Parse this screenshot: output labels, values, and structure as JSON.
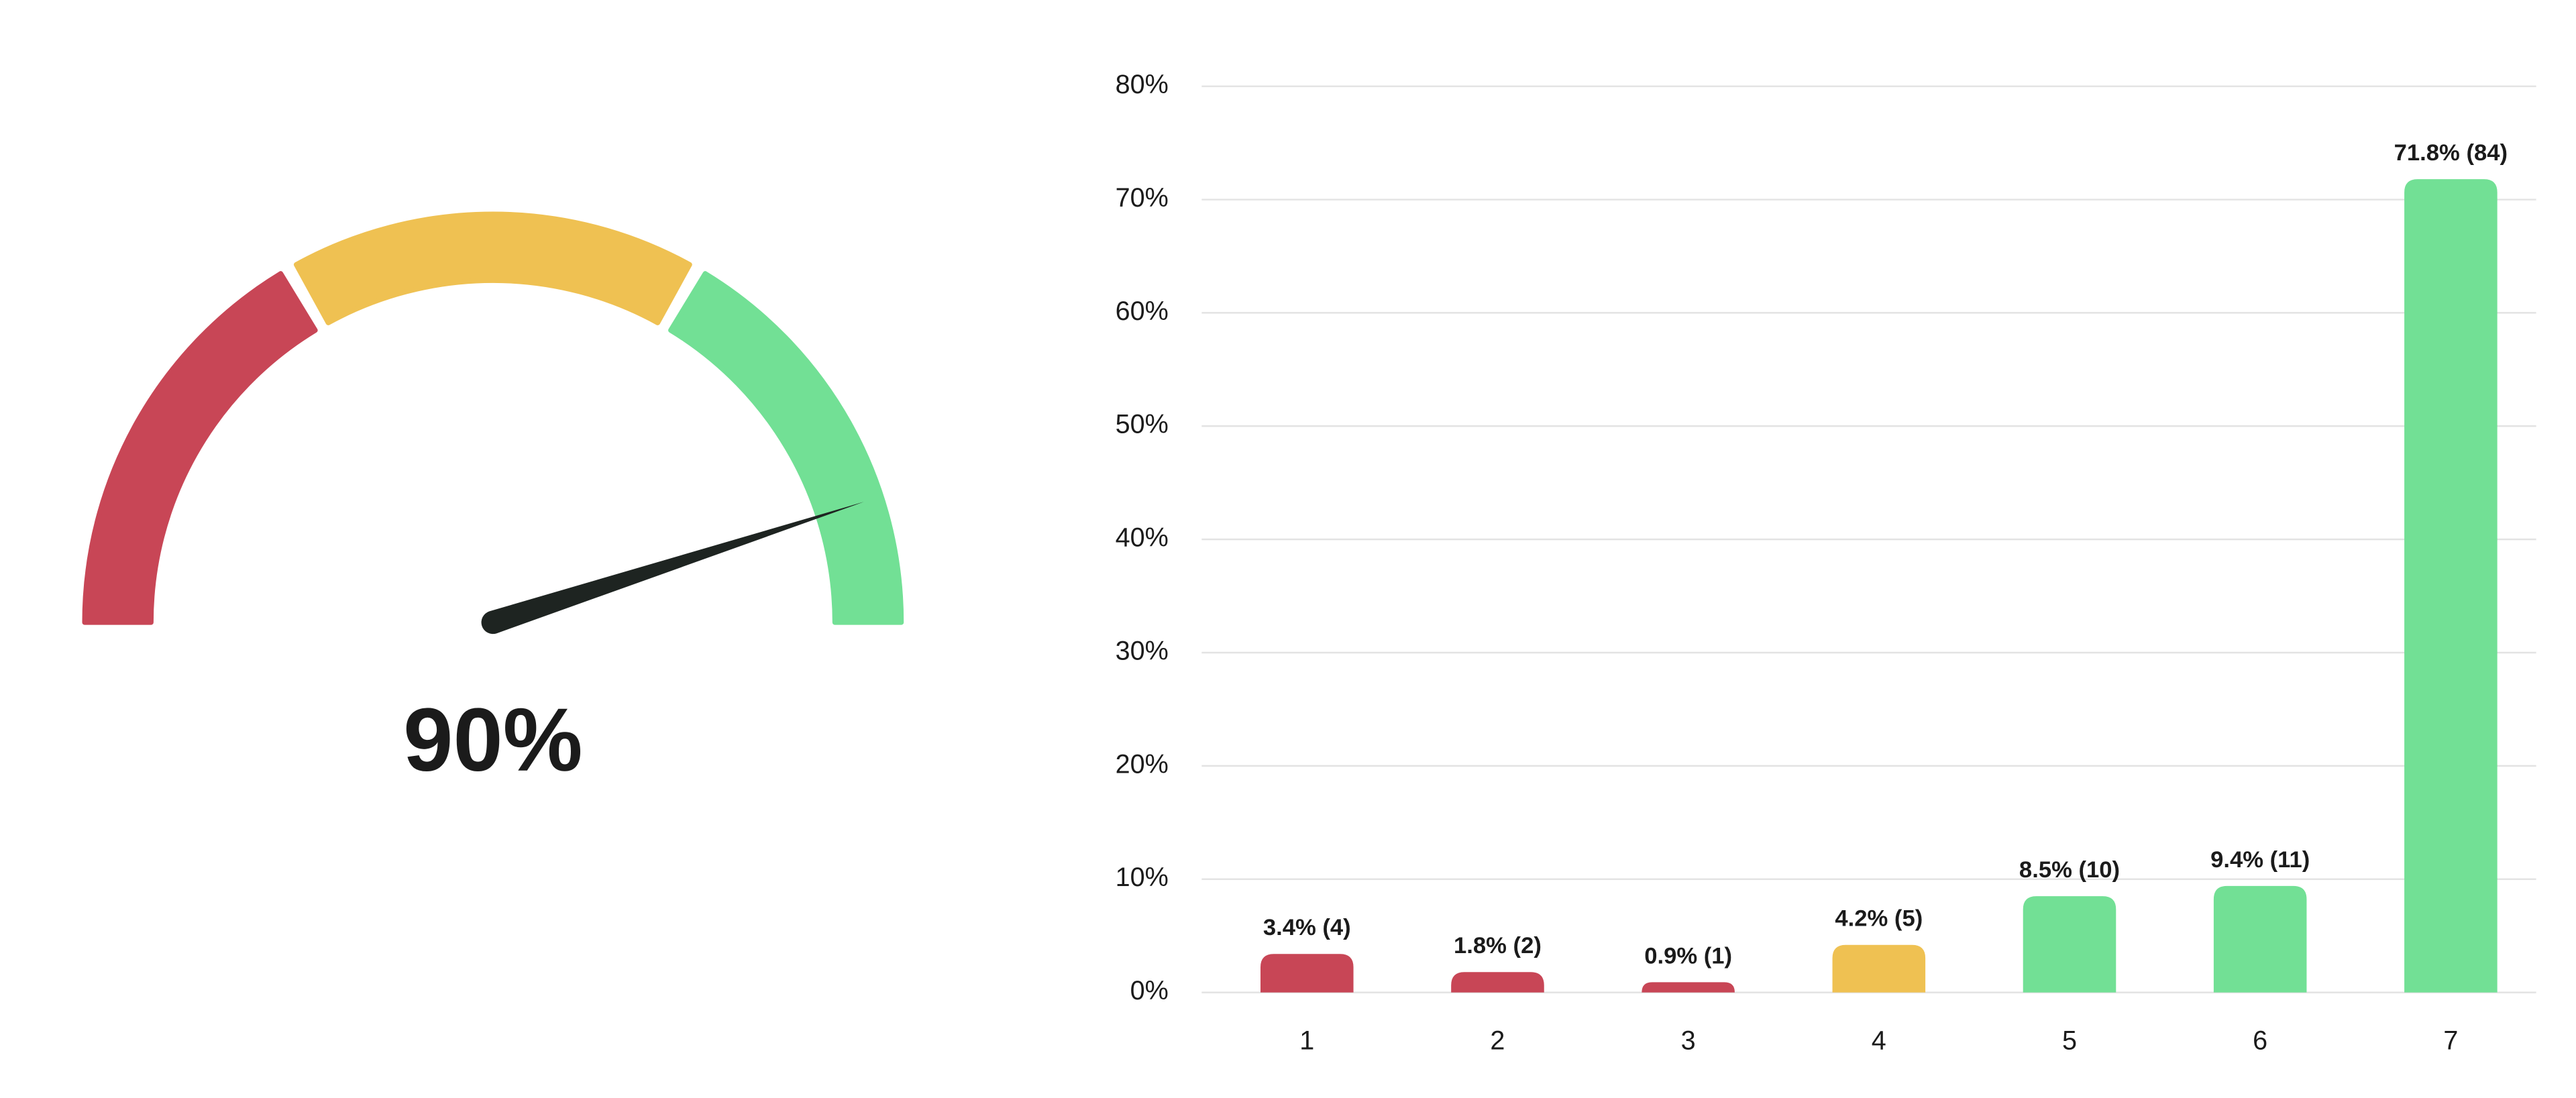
{
  "chart_data": [
    {
      "type": "gauge",
      "value": 90,
      "value_label": "90%",
      "lim": [
        0,
        100
      ],
      "bands": [
        {
          "to": 33.3,
          "color": "#c84656"
        },
        {
          "to": 66.7,
          "color": "#efc152"
        },
        {
          "to": 100,
          "color": "#72e095"
        }
      ],
      "needle_color": "#1e2421"
    },
    {
      "type": "bar",
      "categories": [
        "1",
        "2",
        "3",
        "4",
        "5",
        "6",
        "7"
      ],
      "values": [
        3.4,
        1.8,
        0.9,
        4.2,
        8.5,
        9.4,
        71.8
      ],
      "value_labels": [
        "3.4% (4)",
        "1.8% (2)",
        "0.9% (1)",
        "4.2% (5)",
        "8.5% (10)",
        "9.4% (11)",
        "71.8% (84)"
      ],
      "colors": [
        "#c84656",
        "#c84656",
        "#c84656",
        "#efc152",
        "#72e095",
        "#72e095",
        "#72e095"
      ],
      "ylim": [
        0,
        80
      ],
      "yticks": [
        {
          "value": 0,
          "label": "0%"
        },
        {
          "value": 10,
          "label": "10%"
        },
        {
          "value": 20,
          "label": "20%"
        },
        {
          "value": 30,
          "label": "30%"
        },
        {
          "value": 40,
          "label": "40%"
        },
        {
          "value": 50,
          "label": "50%"
        },
        {
          "value": 60,
          "label": "60%"
        },
        {
          "value": 70,
          "label": "70%"
        },
        {
          "value": 80,
          "label": "80%"
        }
      ],
      "grid": true
    }
  ]
}
